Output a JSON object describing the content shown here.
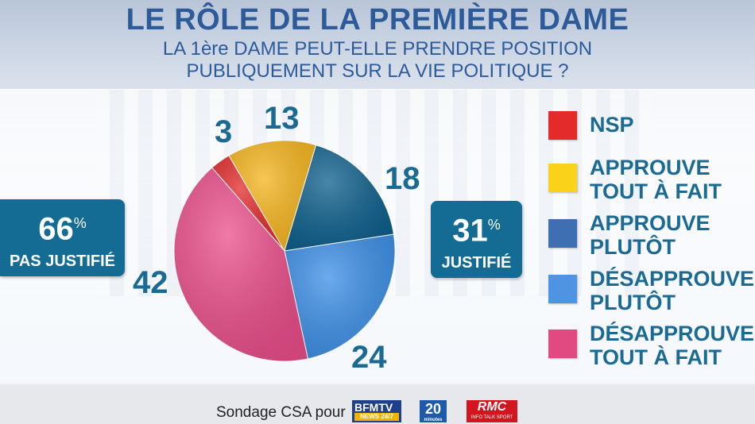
{
  "title": "LE RÔLE DE LA PREMIÈRE DAME",
  "subtitle_line1": "LA 1ère DAME PEUT-ELLE PRENDRE POSITION",
  "subtitle_line2": "PUBLIQUEMENT SUR LA VIE POLITIQUE ?",
  "left_box": {
    "value": "66",
    "unit": "%",
    "label": "PAS JUSTIFIÉ"
  },
  "right_box": {
    "value": "31",
    "unit": "%",
    "label": "JUSTIFIÉ"
  },
  "chart_data": {
    "type": "pie",
    "slices": [
      {
        "label": "NSP",
        "value": 3,
        "value_text": "3",
        "color": "#e32b2b"
      },
      {
        "label": "APPROUVE TOUT À FAIT",
        "value": 13,
        "value_text": "13",
        "color": "#f5b51e"
      },
      {
        "label": "APPROUVE PLUTÔT",
        "value": 18,
        "value_text": "18",
        "color": "#0d5f8c"
      },
      {
        "label": "DÉSAPPROUVE PLUTÔT",
        "value": 24,
        "value_text": "24",
        "color": "#3c8fe6"
      },
      {
        "label": "DÉSAPPROUVE TOUT À FAIT",
        "value": 42,
        "value_text": "42",
        "color": "#ea4e8a"
      }
    ],
    "legend_position": "right"
  },
  "legend": [
    {
      "line1": "NSP",
      "line2": "",
      "color": "#e32b2b"
    },
    {
      "line1": "APPROUVE",
      "line2": "TOUT À FAIT",
      "color": "#fbd21a"
    },
    {
      "line1": "APPROUVE",
      "line2": "PLUTÔT",
      "color": "#3e6fb3"
    },
    {
      "line1": "DÉSAPPROUVE",
      "line2": "PLUTÔT",
      "color": "#4f93e3"
    },
    {
      "line1": "DÉSAPPROUVE",
      "line2": "TOUT À FAIT",
      "color": "#e14a80"
    }
  ],
  "footer": {
    "text": "Sondage CSA pour",
    "logos": {
      "bfm_main": "BFMTV",
      "bfm_sub": "NEWS 24/7",
      "twenty_main": "20",
      "twenty_sub": "minutes",
      "rmc_main": "RMC",
      "rmc_sub": "INFO TALK SPORT"
    }
  }
}
